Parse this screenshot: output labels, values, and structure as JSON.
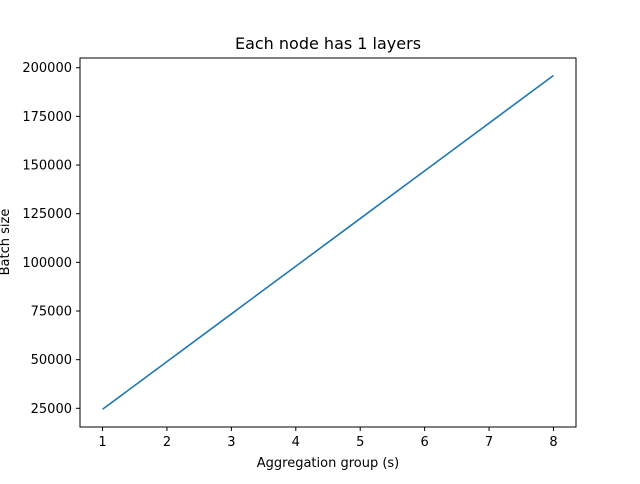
{
  "chart_data": {
    "type": "line",
    "title": "Each node has 1 layers",
    "xlabel": "Aggregation group (s)",
    "ylabel": "Batch size",
    "xlim": [
      0.65,
      8.35
    ],
    "ylim": [
      15400,
      205000
    ],
    "xticks": [
      1,
      2,
      3,
      4,
      5,
      6,
      7,
      8
    ],
    "yticks": [
      25000,
      50000,
      75000,
      100000,
      125000,
      150000,
      175000,
      200000
    ],
    "grid": false,
    "legend": "none",
    "series": [
      {
        "color": "#1f77b4",
        "x": [
          1,
          2,
          3,
          4,
          5,
          6,
          7,
          8
        ],
        "y": [
          24500,
          49000,
          73500,
          98000,
          122500,
          147000,
          171500,
          196000
        ]
      }
    ]
  }
}
